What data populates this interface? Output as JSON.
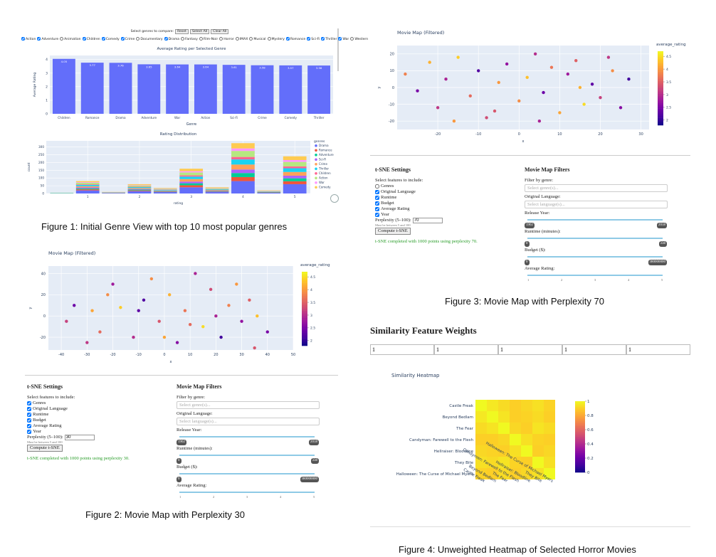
{
  "genre_controls": {
    "prompt": "Select genres to compare:",
    "buttons": [
      "Reset",
      "Select All",
      "Clear All"
    ],
    "genres": [
      {
        "label": "Action",
        "checked": true
      },
      {
        "label": "Adventure",
        "checked": true
      },
      {
        "label": "Animation",
        "checked": false
      },
      {
        "label": "Children",
        "checked": true
      },
      {
        "label": "Comedy",
        "checked": true
      },
      {
        "label": "Crime",
        "checked": true
      },
      {
        "label": "Documentary",
        "checked": false
      },
      {
        "label": "Drama",
        "checked": true
      },
      {
        "label": "Fantasy",
        "checked": false
      },
      {
        "label": "Film-Noir",
        "checked": false
      },
      {
        "label": "Horror",
        "checked": false
      },
      {
        "label": "IMAX",
        "checked": false
      },
      {
        "label": "Musical",
        "checked": false
      },
      {
        "label": "Mystery",
        "checked": false
      },
      {
        "label": "Romance",
        "checked": true
      },
      {
        "label": "Sci-Fi",
        "checked": true
      },
      {
        "label": "Thriller",
        "checked": true
      },
      {
        "label": "War",
        "checked": true
      },
      {
        "label": "Western",
        "checked": false
      }
    ]
  },
  "chart_data": [
    {
      "type": "bar",
      "title": "Average Rating per Selected Genre",
      "x_label": "Genre",
      "y_label": "Average Rating",
      "categories": [
        "Children",
        "Romance",
        "Drama",
        "Adventure",
        "War",
        "Action",
        "Sci-Fi",
        "Crime",
        "Comedy",
        "Thriller"
      ],
      "values": [
        4.05,
        3.77,
        3.76,
        3.65,
        3.64,
        3.64,
        3.61,
        3.58,
        3.57,
        3.56
      ],
      "color": "#636efa",
      "ylim": [
        0,
        4.3
      ],
      "yticks": [
        0,
        1,
        2,
        3,
        4
      ],
      "grid": true
    },
    {
      "type": "stacked_bar",
      "title": "Rating Distribution",
      "x_label": "rating",
      "y_label": "count",
      "legend_title": "genres",
      "x": [
        0.5,
        1,
        1.5,
        2,
        2.5,
        3,
        3.5,
        4,
        4.5,
        5
      ],
      "xlim": [
        0.2,
        5.3
      ],
      "xticks": [
        1,
        2,
        3,
        4,
        5
      ],
      "ylim": [
        0,
        340
      ],
      "yticks": [
        0,
        50,
        100,
        150,
        200,
        250,
        300
      ],
      "grid": true,
      "series": [
        {
          "name": "Drama",
          "color": "#636efa",
          "values": [
            1,
            20,
            3,
            15,
            9,
            40,
            10,
            80,
            5,
            60
          ]
        },
        {
          "name": "Romance",
          "color": "#ef553b",
          "values": [
            0,
            7,
            1,
            5,
            3,
            13,
            3,
            26,
            2,
            19
          ]
        },
        {
          "name": "Adventure",
          "color": "#00cc96",
          "values": [
            1,
            6,
            1,
            5,
            3,
            13,
            3,
            26,
            2,
            19
          ]
        },
        {
          "name": "Sci-Fi",
          "color": "#ab63fa",
          "values": [
            0,
            6,
            1,
            4,
            2,
            11,
            3,
            23,
            1,
            17
          ]
        },
        {
          "name": "Crime",
          "color": "#ffa15a",
          "values": [
            1,
            8,
            1,
            6,
            3,
            16,
            4,
            32,
            2,
            24
          ]
        },
        {
          "name": "Thriller",
          "color": "#19d3f3",
          "values": [
            1,
            8,
            1,
            6,
            4,
            16,
            4,
            33,
            2,
            24
          ]
        },
        {
          "name": "Children",
          "color": "#ff6692",
          "values": [
            0,
            4,
            0,
            3,
            2,
            8,
            2,
            16,
            1,
            12
          ]
        },
        {
          "name": "Action",
          "color": "#b6e880",
          "values": [
            1,
            10,
            1,
            7,
            4,
            19,
            5,
            39,
            2,
            29
          ]
        },
        {
          "name": "War",
          "color": "#ff97ff",
          "values": [
            0,
            4,
            0,
            3,
            2,
            8,
            2,
            16,
            1,
            12
          ]
        },
        {
          "name": "Comedy",
          "color": "#fecb52",
          "values": [
            0,
            7,
            1,
            6,
            3,
            16,
            4,
            34,
            2,
            24
          ]
        }
      ]
    },
    {
      "type": "scatter",
      "title": "Movie Map (Filtered)",
      "x_label": "x",
      "y_label": "y",
      "colorbar_title": "average_rating",
      "colorscale": "Plasma",
      "x": [
        -38,
        -35,
        -28,
        -25,
        -20,
        -17,
        -12,
        -8,
        -5,
        -2,
        2,
        5,
        8,
        12,
        15,
        18,
        22,
        25,
        28,
        30,
        33,
        36,
        40,
        -30,
        -22,
        -10,
        0,
        10,
        20,
        35
      ],
      "y": [
        -5,
        10,
        5,
        -15,
        30,
        8,
        -20,
        15,
        35,
        -5,
        20,
        -25,
        5,
        40,
        -10,
        25,
        -20,
        10,
        30,
        -5,
        15,
        0,
        -15,
        -25,
        20,
        5,
        -20,
        -8,
        0,
        -30
      ],
      "color_values": [
        3.2,
        2.4,
        4.1,
        3.6,
        2.8,
        4.4,
        3.0,
        2.2,
        3.9,
        3.4,
        4.2,
        2.6,
        3.7,
        2.9,
        4.5,
        3.3,
        2.1,
        3.8,
        4.0,
        2.7,
        3.5,
        4.3,
        2.5,
        3.1,
        3.9,
        2.3,
        4.1,
        3.6,
        2.9,
        3.4
      ],
      "xlim": [
        -45,
        50
      ],
      "xticks": [
        -40,
        -30,
        -20,
        -10,
        0,
        10,
        20,
        30,
        40,
        50
      ],
      "ylim": [
        -32,
        47
      ],
      "yticks": [
        -20,
        0,
        20,
        40
      ],
      "clim": [
        1.8,
        4.7
      ],
      "cticks": [
        2,
        2.5,
        3,
        3.5,
        4,
        4.5
      ],
      "grid": true
    },
    {
      "type": "scatter",
      "title": "Movie Map (Filtered)",
      "x_label": "x",
      "y_label": "y",
      "colorbar_title": "average_rating",
      "colorscale": "Plasma",
      "x": [
        -28,
        -25,
        -22,
        -20,
        -18,
        -15,
        -12,
        -10,
        -8,
        -5,
        -3,
        0,
        2,
        4,
        6,
        8,
        10,
        12,
        14,
        16,
        18,
        20,
        23,
        25,
        -16,
        -6,
        5,
        15,
        22,
        27
      ],
      "y": [
        8,
        -2,
        15,
        -12,
        5,
        18,
        -5,
        10,
        -18,
        3,
        14,
        -8,
        6,
        20,
        -3,
        12,
        -15,
        8,
        16,
        -10,
        2,
        -6,
        10,
        -12,
        -20,
        -14,
        -20,
        0,
        18,
        5
      ],
      "color_values": [
        3.8,
        2.5,
        4.2,
        3.1,
        2.9,
        4.4,
        3.6,
        2.2,
        3.3,
        4.0,
        2.7,
        3.9,
        4.3,
        3.0,
        2.4,
        3.7,
        4.1,
        2.8,
        3.5,
        4.5,
        2.3,
        3.2,
        3.9,
        2.6,
        4.0,
        3.4,
        2.9,
        4.2,
        3.1,
        2.1
      ],
      "xlim": [
        -30,
        32
      ],
      "xticks": [
        -20,
        -10,
        0,
        10,
        20,
        30
      ],
      "ylim": [
        -25,
        25
      ],
      "yticks": [
        -20,
        -10,
        0,
        10,
        20
      ],
      "clim": [
        1.8,
        4.7
      ],
      "cticks": [
        2,
        2.5,
        3,
        3.5,
        4,
        4.5
      ],
      "grid": true
    },
    {
      "type": "heatmap",
      "title": "Similarity Heatmap",
      "colorscale": "Plasma",
      "labels": [
        "Castle Freak",
        "Beyond Bedlam",
        "The Fear",
        "Candyman: Farewell to the Flesh",
        "Hellraiser: Bloodline",
        "They Bite",
        "Halloween: The Curse of Michael Myers"
      ],
      "z": [
        [
          1,
          0.96,
          0.93,
          0.9,
          0.92,
          0.94,
          0.91
        ],
        [
          0.96,
          1,
          0.95,
          0.9,
          0.91,
          0.93,
          0.9
        ],
        [
          0.93,
          0.95,
          1,
          0.92,
          0.9,
          0.95,
          0.93
        ],
        [
          0.9,
          0.9,
          0.92,
          1,
          0.94,
          0.91,
          0.9
        ],
        [
          0.92,
          0.91,
          0.9,
          0.94,
          1,
          0.9,
          0.92
        ],
        [
          0.94,
          0.93,
          0.95,
          0.91,
          0.9,
          1,
          0.94
        ],
        [
          0.91,
          0.9,
          0.93,
          0.9,
          0.92,
          0.94,
          1
        ]
      ],
      "zlim": [
        0,
        1
      ],
      "zticks": [
        0,
        0.2,
        0.4,
        0.6,
        0.8,
        1
      ]
    }
  ],
  "panels": [
    {
      "tsne": {
        "title": "t-SNE Settings",
        "prompt": "Select features to include:",
        "features": [
          {
            "label": "Genres",
            "checked": true
          },
          {
            "label": "Original Language",
            "checked": true
          },
          {
            "label": "Runtime",
            "checked": true
          },
          {
            "label": "Budget",
            "checked": true
          },
          {
            "label": "Average Rating",
            "checked": true
          },
          {
            "label": "Year",
            "checked": true
          }
        ],
        "perplexity_label": "Perplexity (5–100):",
        "perplexity": 30,
        "hint": "Must be between 5 and 100",
        "button": "Compute t-SNE",
        "status": "t-SNE completed with 1000 points using perplexity 30."
      },
      "filters": {
        "title": "Movie Map Filters",
        "genre_label": "Filter by genre:",
        "genre_placeholder": "Select genre(s)...",
        "language_label": "Original Language:",
        "language_placeholder": "Select language(s)...",
        "year_label": "Release Year:",
        "year_range": [
          1902,
          2018
        ],
        "runtime_label": "Runtime (minutes):",
        "runtime_range": [
          0,
          338
        ],
        "budget_label": "Budget ($):",
        "budget_range": [
          0,
          380000000
        ],
        "rating_label": "Average Rating:",
        "rating_ticks": [
          1,
          2,
          3,
          4,
          5
        ]
      }
    },
    {
      "tsne": {
        "title": "t-SNE Settings",
        "prompt": "Select features to include:",
        "features": [
          {
            "label": "Genres",
            "checked": false
          },
          {
            "label": "Original Language",
            "checked": true
          },
          {
            "label": "Runtime",
            "checked": true
          },
          {
            "label": "Budget",
            "checked": true
          },
          {
            "label": "Average Rating",
            "checked": true
          },
          {
            "label": "Year",
            "checked": true
          }
        ],
        "perplexity_label": "Perplexity (5–100):",
        "perplexity": 70,
        "hint": "Must be between 5 and 100",
        "button": "Compute t-SNE",
        "status": "t-SNE completed with 1000 points using perplexity 70."
      },
      "filters": {
        "title": "Movie Map Filters",
        "genre_label": "Filter by genre:",
        "genre_placeholder": "Select genre(s)...",
        "language_label": "Original Language:",
        "language_placeholder": "Select language(s)...",
        "year_label": "Release Year:",
        "year_range": [
          1902,
          2018
        ],
        "runtime_label": "Runtime (minutes):",
        "runtime_range": [
          0,
          338
        ],
        "budget_label": "Budget ($):",
        "budget_range": [
          0,
          380000000
        ],
        "rating_label": "Average Rating:",
        "rating_ticks": [
          1,
          2,
          3,
          4,
          5
        ]
      }
    }
  ],
  "weights": {
    "title": "Similarity Feature Weights",
    "values": [
      1,
      1,
      1,
      1,
      1
    ]
  },
  "captions": [
    "Figure 1: Initial Genre View with top 10 most popular genres",
    "Figure 2: Movie Map with Perplexity 30",
    "Figure 3: Movie Map with Perplexity 70",
    "Figure 4: Unweighted Heatmap of Selected Horror Movies"
  ]
}
